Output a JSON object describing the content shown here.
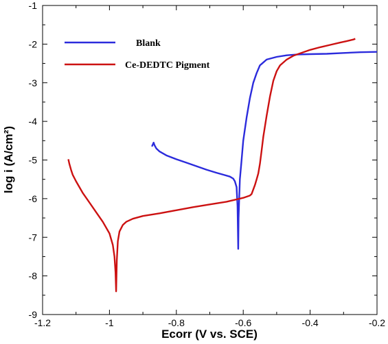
{
  "chart_data": {
    "type": "line",
    "title": "",
    "xlabel": "Ecorr (V vs. SCE)",
    "ylabel": "log i (A/cm²)",
    "xlim": [
      -1.2,
      -0.2
    ],
    "ylim": [
      -9,
      -1
    ],
    "xticks": [
      -1.2,
      -1,
      -0.8,
      -0.6,
      -0.4,
      -0.2
    ],
    "xtick_labels": [
      "-1.2",
      "-1",
      "-0.8",
      "-0.6",
      "-0.4",
      "-0.2"
    ],
    "yticks": [
      -9,
      -8,
      -7,
      -6,
      -5,
      -4,
      -3,
      -2,
      -1
    ],
    "ytick_labels": [
      "-9",
      "-8",
      "-7",
      "-6",
      "-5",
      "-4",
      "-3",
      "-2",
      "-1"
    ],
    "grid": false,
    "legend_position": "top-left",
    "series": [
      {
        "name": "Blank",
        "color": "#2b2bdc",
        "x": [
          -0.873,
          -0.868,
          -0.865,
          -0.86,
          -0.85,
          -0.83,
          -0.8,
          -0.77,
          -0.74,
          -0.71,
          -0.68,
          -0.66,
          -0.64,
          -0.63,
          -0.625,
          -0.62,
          -0.617,
          -0.615,
          -0.614,
          -0.612,
          -0.61,
          -0.605,
          -0.6,
          -0.59,
          -0.58,
          -0.57,
          -0.56,
          -0.55,
          -0.53,
          -0.5,
          -0.47,
          -0.44,
          -0.4,
          -0.35,
          -0.3,
          -0.25,
          -0.2
        ],
        "y": [
          -4.65,
          -4.55,
          -4.62,
          -4.7,
          -4.78,
          -4.88,
          -4.98,
          -5.07,
          -5.16,
          -5.25,
          -5.33,
          -5.38,
          -5.43,
          -5.48,
          -5.55,
          -5.7,
          -6.2,
          -7.3,
          -6.5,
          -5.95,
          -5.5,
          -5.0,
          -4.5,
          -3.9,
          -3.4,
          -3.0,
          -2.75,
          -2.55,
          -2.4,
          -2.33,
          -2.29,
          -2.27,
          -2.26,
          -2.25,
          -2.23,
          -2.21,
          -2.2
        ]
      },
      {
        "name": "Ce-DEDTC Pigment",
        "color": "#cc1111",
        "x": [
          -1.123,
          -1.12,
          -1.115,
          -1.11,
          -1.1,
          -1.08,
          -1.06,
          -1.04,
          -1.02,
          -1.0,
          -0.99,
          -0.985,
          -0.982,
          -0.98,
          -0.978,
          -0.975,
          -0.97,
          -0.96,
          -0.95,
          -0.93,
          -0.9,
          -0.85,
          -0.8,
          -0.75,
          -0.7,
          -0.65,
          -0.6,
          -0.58,
          -0.575,
          -0.565,
          -0.56,
          -0.555,
          -0.55,
          -0.545,
          -0.54,
          -0.53,
          -0.52,
          -0.51,
          -0.5,
          -0.49,
          -0.47,
          -0.45,
          -0.43,
          -0.4,
          -0.37,
          -0.34,
          -0.31,
          -0.29,
          -0.27,
          -0.265
        ],
        "y": [
          -4.98,
          -5.1,
          -5.25,
          -5.38,
          -5.55,
          -5.85,
          -6.1,
          -6.35,
          -6.6,
          -6.9,
          -7.2,
          -7.5,
          -7.9,
          -8.4,
          -7.6,
          -7.1,
          -6.85,
          -6.68,
          -6.6,
          -6.52,
          -6.45,
          -6.38,
          -6.3,
          -6.22,
          -6.15,
          -6.08,
          -5.98,
          -5.92,
          -5.88,
          -5.65,
          -5.5,
          -5.35,
          -5.1,
          -4.75,
          -4.4,
          -3.85,
          -3.35,
          -2.95,
          -2.7,
          -2.55,
          -2.4,
          -2.3,
          -2.24,
          -2.15,
          -2.08,
          -2.02,
          -1.96,
          -1.92,
          -1.88,
          -1.86
        ]
      }
    ]
  }
}
